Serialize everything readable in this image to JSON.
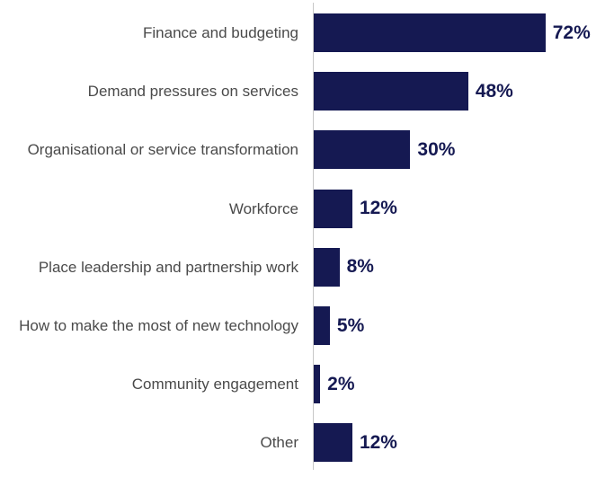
{
  "chart_data": {
    "type": "bar",
    "orientation": "horizontal",
    "categories": [
      "Finance and budgeting",
      "Demand pressures on services",
      "Organisational or service transformation",
      "Workforce",
      "Place leadership and partnership work",
      "How to make the most of new technology",
      "Community engagement",
      "Other"
    ],
    "values": [
      72,
      48,
      30,
      12,
      8,
      5,
      2,
      12
    ],
    "value_labels": [
      "72%",
      "48%",
      "30%",
      "12%",
      "8%",
      "5%",
      "2%",
      "12%"
    ],
    "color": "#151952"
  }
}
